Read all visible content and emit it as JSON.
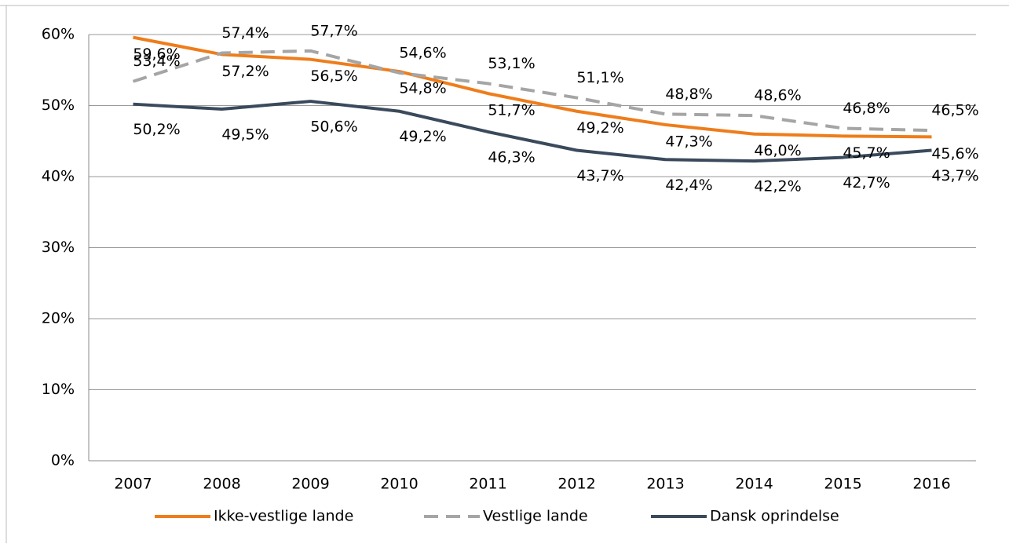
{
  "chart_data": {
    "type": "line",
    "categories": [
      "2007",
      "2008",
      "2009",
      "2010",
      "2011",
      "2012",
      "2013",
      "2014",
      "2015",
      "2016"
    ],
    "series": [
      {
        "name": "Ikke-vestlige lande",
        "color": "#ee7d1b",
        "dashed": false,
        "label_side": "below",
        "values": [
          59.6,
          57.2,
          56.5,
          54.8,
          51.7,
          49.2,
          47.3,
          46.0,
          45.7,
          45.6
        ],
        "value_labels": [
          "59,6%",
          "57,2%",
          "56,5%",
          "54,8%",
          "51,7%",
          "49,2%",
          "47,3%",
          "46,0%",
          "45,7%",
          "45,6%"
        ]
      },
      {
        "name": "Vestlige lande",
        "color": "#a5a5a5",
        "dashed": true,
        "label_side": "above",
        "values": [
          53.4,
          57.4,
          57.7,
          54.6,
          53.1,
          51.1,
          48.8,
          48.6,
          46.8,
          46.5
        ],
        "value_labels": [
          "53,4%",
          "57,4%",
          "57,7%",
          "54,6%",
          "53,1%",
          "51,1%",
          "48,8%",
          "48,6%",
          "46,8%",
          "46,5%"
        ]
      },
      {
        "name": "Dansk oprindelse",
        "color": "#3a4a5c",
        "dashed": false,
        "label_side": "far-below",
        "values": [
          50.2,
          49.5,
          50.6,
          49.2,
          46.3,
          43.7,
          42.4,
          42.2,
          42.7,
          43.7
        ],
        "value_labels": [
          "50,2%",
          "49,5%",
          "50,6%",
          "49,2%",
          "46,3%",
          "43,7%",
          "42,4%",
          "42,2%",
          "42,7%",
          "43,7%"
        ]
      }
    ],
    "ylim": [
      0,
      60
    ],
    "yticks": [
      {
        "value": 0,
        "label": "0%"
      },
      {
        "value": 10,
        "label": "10%"
      },
      {
        "value": 20,
        "label": "20%"
      },
      {
        "value": 30,
        "label": "30%"
      },
      {
        "value": 40,
        "label": "40%"
      },
      {
        "value": 50,
        "label": "50%"
      },
      {
        "value": 60,
        "label": "60%"
      }
    ],
    "grid": true,
    "legend": "bottom"
  }
}
